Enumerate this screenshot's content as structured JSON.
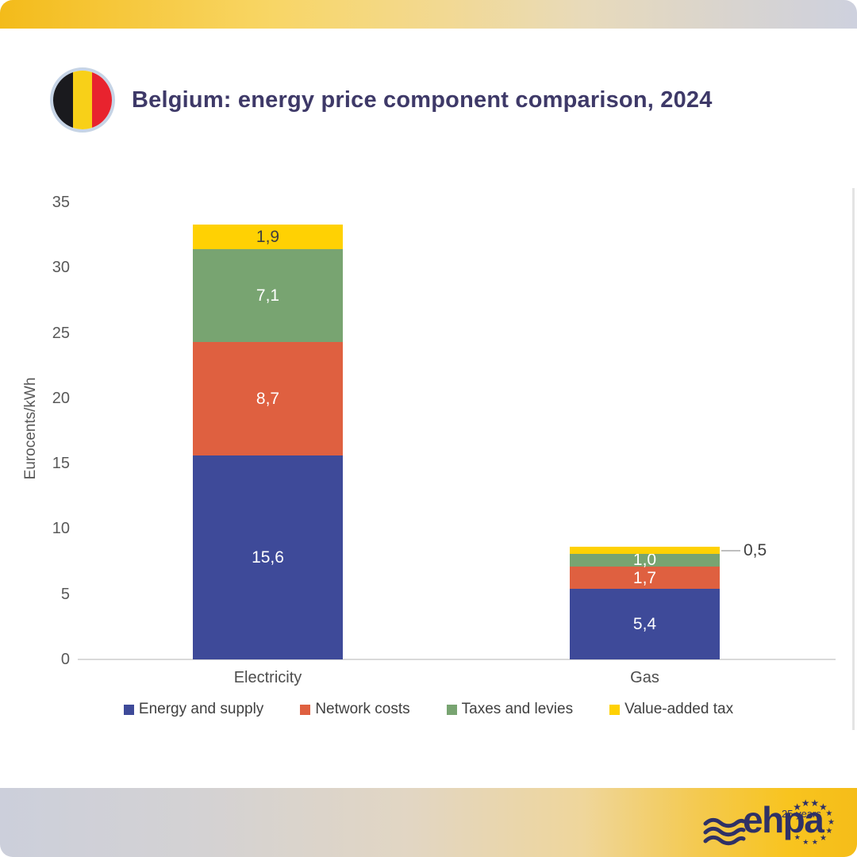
{
  "header": {
    "title": "Belgium: energy price component comparison, 2024",
    "flag_country": "Belgium"
  },
  "chart_data": {
    "type": "bar",
    "stacked": true,
    "title": "Belgium: energy price component comparison, 2024",
    "categories": [
      "Electricity",
      "Gas"
    ],
    "series": [
      {
        "name": "Energy and supply",
        "color": "#3E4A99",
        "values": [
          15.6,
          5.4
        ],
        "labels": [
          "15,6",
          "5,4"
        ],
        "label_color": "#FFFFFF"
      },
      {
        "name": "Network costs",
        "color": "#DF6040",
        "values": [
          8.7,
          1.7
        ],
        "labels": [
          "8,7",
          "1,7"
        ],
        "label_color": "#FFFFFF"
      },
      {
        "name": "Taxes and levies",
        "color": "#78A471",
        "values": [
          7.1,
          1.0
        ],
        "labels": [
          "7,1",
          "1,0"
        ],
        "label_color": "#FFFFFF"
      },
      {
        "name": "Value-added tax",
        "color": "#FFD103",
        "values": [
          1.9,
          0.5
        ],
        "labels": [
          "1,9",
          "0,5"
        ],
        "label_color": "#3F3F3F"
      }
    ],
    "totals": [
      33.3,
      8.6
    ],
    "ylabel": "Eurocents/kWh",
    "yticks": [
      0,
      5,
      10,
      15,
      20,
      25,
      30,
      35
    ],
    "ylim": [
      0,
      35
    ],
    "grid": false,
    "legend_position": "bottom"
  },
  "footer": {
    "logo_text": "ehpa",
    "logo_badge": "25 years"
  },
  "colors": {
    "title_navy": "#3E3968",
    "axis_text": "#595959",
    "baseline_gray": "#D9D9D9",
    "logo_navy": "#2F3166",
    "flag_black": "#1A1A1E",
    "flag_yellow": "#F8D018",
    "flag_red": "#E8232E",
    "band_gold": "#F3BB1A",
    "band_lavender": "#CED1DE"
  }
}
